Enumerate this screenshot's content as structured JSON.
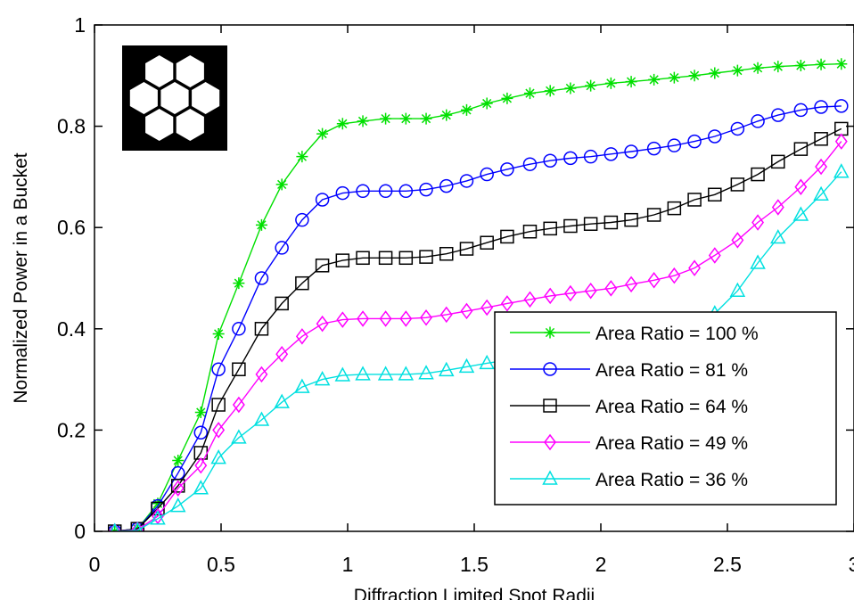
{
  "chart_data": {
    "type": "line",
    "title": "",
    "xlabel": "Diffraction Limited Spot Radii",
    "ylabel": "Normalized Power in a Bucket",
    "xlim": [
      0,
      3
    ],
    "ylim": [
      0,
      1
    ],
    "xticks": [
      0,
      0.5,
      1,
      1.5,
      2,
      2.5,
      3
    ],
    "xtick_labels": [
      "0",
      "0.5",
      "1",
      "1.5",
      "2",
      "2.5",
      "3"
    ],
    "yticks": [
      0,
      0.2,
      0.4,
      0.6,
      0.8,
      1
    ],
    "ytick_labels": [
      "0",
      "0.2",
      "0.4",
      "0.6",
      "0.8",
      "1"
    ],
    "grid": false,
    "legend_position": "lower-right",
    "inset": "seven-hexagon-aperture-icon",
    "x": [
      0.08,
      0.17,
      0.25,
      0.33,
      0.42,
      0.49,
      0.57,
      0.66,
      0.74,
      0.82,
      0.9,
      0.98,
      1.06,
      1.15,
      1.23,
      1.31,
      1.39,
      1.47,
      1.55,
      1.63,
      1.72,
      1.8,
      1.88,
      1.96,
      2.04,
      2.12,
      2.21,
      2.29,
      2.37,
      2.45,
      2.54,
      2.62,
      2.7,
      2.79,
      2.87,
      2.95
    ],
    "series": [
      {
        "name": "Area Ratio = 100 %",
        "color": "#00e000",
        "marker": "asterisk",
        "values": [
          0.0,
          0.005,
          0.055,
          0.14,
          0.235,
          0.39,
          0.49,
          0.605,
          0.685,
          0.74,
          0.785,
          0.805,
          0.81,
          0.815,
          0.815,
          0.815,
          0.822,
          0.832,
          0.845,
          0.855,
          0.865,
          0.87,
          0.875,
          0.88,
          0.885,
          0.888,
          0.892,
          0.896,
          0.9,
          0.905,
          0.91,
          0.915,
          0.918,
          0.92,
          0.922,
          0.923
        ]
      },
      {
        "name": "Area Ratio = 81 %",
        "color": "#0000ff",
        "marker": "circle",
        "values": [
          0.0,
          0.005,
          0.05,
          0.115,
          0.195,
          0.32,
          0.4,
          0.5,
          0.56,
          0.615,
          0.655,
          0.668,
          0.672,
          0.672,
          0.672,
          0.675,
          0.682,
          0.692,
          0.705,
          0.715,
          0.725,
          0.732,
          0.737,
          0.74,
          0.745,
          0.75,
          0.756,
          0.762,
          0.77,
          0.78,
          0.795,
          0.81,
          0.822,
          0.832,
          0.838,
          0.84
        ]
      },
      {
        "name": "Area Ratio = 64 %",
        "color": "#000000",
        "marker": "square",
        "values": [
          0.0,
          0.005,
          0.045,
          0.09,
          0.155,
          0.25,
          0.32,
          0.4,
          0.45,
          0.49,
          0.525,
          0.535,
          0.54,
          0.54,
          0.54,
          0.542,
          0.548,
          0.558,
          0.57,
          0.582,
          0.592,
          0.598,
          0.603,
          0.607,
          0.61,
          0.615,
          0.625,
          0.638,
          0.655,
          0.665,
          0.685,
          0.705,
          0.73,
          0.755,
          0.775,
          0.795
        ]
      },
      {
        "name": "Area Ratio = 49 %",
        "color": "#ff00ff",
        "marker": "diamond",
        "values": [
          0.0,
          0.003,
          0.03,
          0.085,
          0.13,
          0.2,
          0.25,
          0.31,
          0.35,
          0.385,
          0.41,
          0.418,
          0.42,
          0.42,
          0.42,
          0.422,
          0.428,
          0.435,
          0.442,
          0.45,
          0.458,
          0.465,
          0.47,
          0.475,
          0.48,
          0.488,
          0.496,
          0.505,
          0.52,
          0.545,
          0.575,
          0.61,
          0.64,
          0.68,
          0.72,
          0.77
        ]
      },
      {
        "name": "Area Ratio = 36 %",
        "color": "#00e0e0",
        "marker": "triangle",
        "values": [
          0.0,
          0.002,
          0.025,
          0.05,
          0.085,
          0.145,
          0.185,
          0.22,
          0.255,
          0.285,
          0.3,
          0.308,
          0.31,
          0.31,
          0.31,
          0.312,
          0.318,
          0.325,
          0.332,
          0.338,
          0.345,
          0.352,
          0.358,
          0.365,
          0.37,
          0.376,
          0.382,
          0.39,
          0.405,
          0.43,
          0.475,
          0.53,
          0.58,
          0.625,
          0.665,
          0.71
        ]
      }
    ]
  }
}
